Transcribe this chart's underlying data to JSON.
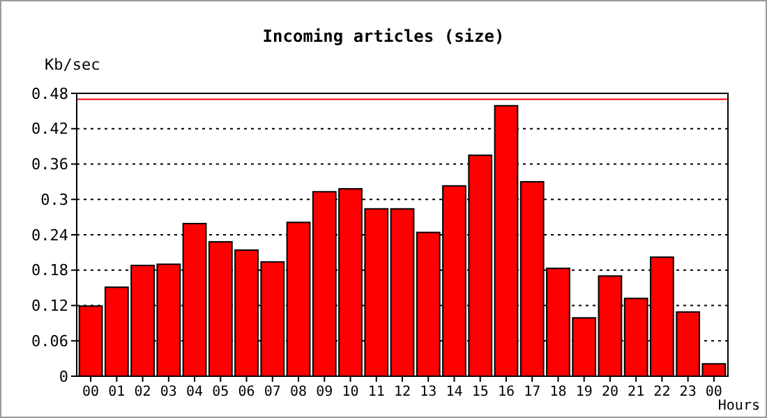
{
  "chart_data": {
    "type": "bar",
    "title": "Incoming articles (size)",
    "xlabel": "Hours",
    "ylabel": "Kb/sec",
    "categories": [
      "00",
      "01",
      "02",
      "03",
      "04",
      "05",
      "06",
      "07",
      "08",
      "09",
      "10",
      "11",
      "12",
      "13",
      "14",
      "15",
      "16",
      "17",
      "18",
      "19",
      "20",
      "21",
      "22",
      "23",
      "00"
    ],
    "values": [
      0.119,
      0.151,
      0.188,
      0.19,
      0.259,
      0.228,
      0.214,
      0.194,
      0.261,
      0.313,
      0.318,
      0.284,
      0.284,
      0.244,
      0.323,
      0.375,
      0.459,
      0.33,
      0.183,
      0.099,
      0.17,
      0.132,
      0.202,
      0.109,
      0.021
    ],
    "color": "#ff0000",
    "ylim": [
      0,
      0.48
    ],
    "yticks": [
      {
        "value": 0,
        "label": "0"
      },
      {
        "value": 0.06,
        "label": "0.06"
      },
      {
        "value": 0.12,
        "label": "0.12"
      },
      {
        "value": 0.18,
        "label": "0.18"
      },
      {
        "value": 0.24,
        "label": "0.24"
      },
      {
        "value": 0.3,
        "label": "0.3"
      },
      {
        "value": 0.36,
        "label": "0.36"
      },
      {
        "value": 0.42,
        "label": "0.42"
      },
      {
        "value": 0.48,
        "label": "0.48"
      }
    ],
    "grid": "y",
    "ref_lines": [
      {
        "axis": "y",
        "value": 0.47,
        "color": "#ff0000"
      }
    ]
  }
}
